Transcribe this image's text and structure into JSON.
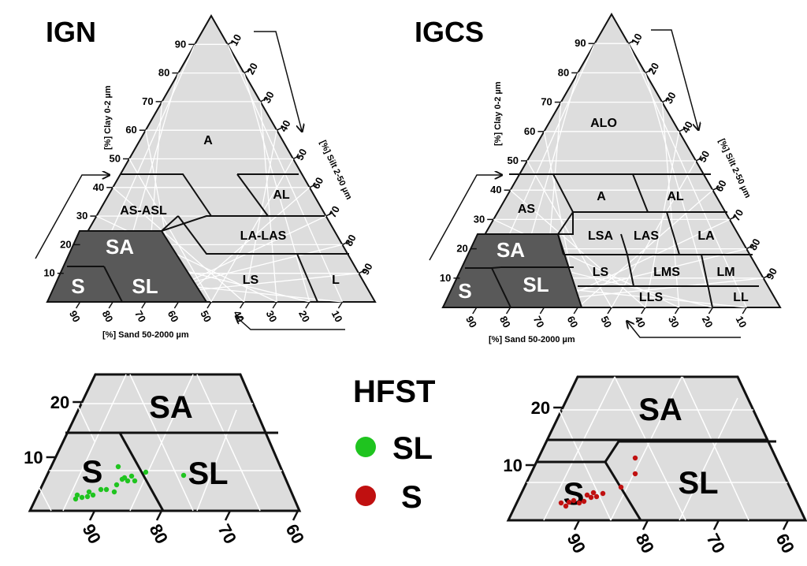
{
  "panels": {
    "ign": {
      "title": "IGN",
      "clay_axis": "[%] Clay 0-2 µm",
      "silt_axis": "[%] Silt 2-50 µm",
      "sand_axis": "[%] Sand 50-2000 µm",
      "clay_ticks": [
        "10",
        "20",
        "30",
        "40",
        "50",
        "60",
        "70",
        "80",
        "90"
      ],
      "silt_ticks": [
        "10",
        "20",
        "30",
        "40",
        "50",
        "60",
        "70",
        "80",
        "90"
      ],
      "sand_ticks": [
        "90",
        "80",
        "70",
        "60",
        "50",
        "40",
        "30",
        "20",
        "10"
      ],
      "classes": [
        "A",
        "AS-ASL",
        "AL",
        "SA",
        "LA-LAS",
        "S",
        "SL",
        "LS",
        "L"
      ]
    },
    "igcs": {
      "title": "IGCS",
      "clay_axis": "[%] Clay 0-2 µm",
      "silt_axis": "[%] Silt 2-50 µm",
      "sand_axis": "[%] Sand 50-2000 µm",
      "clay_ticks": [
        "10",
        "20",
        "30",
        "40",
        "50",
        "60",
        "70",
        "80",
        "90"
      ],
      "silt_ticks": [
        "10",
        "20",
        "30",
        "40",
        "50",
        "60",
        "70",
        "80",
        "90"
      ],
      "sand_ticks": [
        "90",
        "80",
        "70",
        "60",
        "50",
        "40",
        "30",
        "20",
        "10"
      ],
      "classes": [
        "ALO",
        "AS",
        "A",
        "AL",
        "SA",
        "LSA",
        "LAS",
        "LA",
        "S",
        "SL",
        "LS",
        "LMS",
        "LM",
        "LLS",
        "LL"
      ]
    },
    "zoom_ign": {
      "clay_ticks": [
        "20",
        "10"
      ],
      "sand_ticks": [
        "90",
        "80",
        "70",
        "60"
      ],
      "classes": [
        "SA",
        "S",
        "SL"
      ]
    },
    "zoom_igcs": {
      "clay_ticks": [
        "20",
        "10"
      ],
      "sand_ticks": [
        "90",
        "80",
        "70",
        "60"
      ],
      "classes": [
        "SA",
        "S",
        "SL"
      ]
    }
  },
  "legend": {
    "title": "HFST",
    "items": [
      {
        "label": "SL",
        "color": "#1fc41f"
      },
      {
        "label": "S",
        "color": "#c01010"
      }
    ]
  },
  "colors": {
    "fill_light": "#dddddd",
    "fill_dark": "#595959",
    "line": "#111111",
    "grid": "#ffffff"
  }
}
